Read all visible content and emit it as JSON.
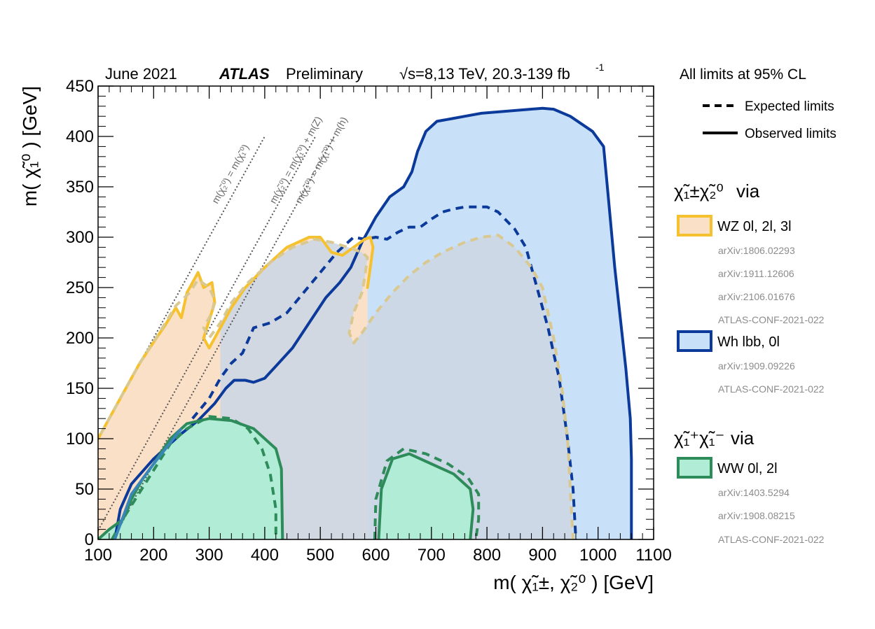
{
  "header": {
    "date": "June 2021",
    "experiment": "ATLAS",
    "status": "Preliminary",
    "sqrt_s_symbol": "√s",
    "energy_lumi": "=8,13 TeV, 20.3-139 fb",
    "lumi_exponent": "-1"
  },
  "legend": {
    "cl_note": "All limits at 95% CL",
    "expected_label": "Expected limits",
    "observed_label": "Observed limits",
    "groups": [
      {
        "process": "χ̃₁±χ̃₂⁰",
        "via": "via",
        "entries": [
          {
            "id": "wz",
            "label": "WZ  0l, 2l, 3l",
            "refs": [
              "arXiv:1806.02293",
              "arXiv:1911.12606",
              "arXiv:2106.01676",
              "ATLAS-CONF-2021-022"
            ]
          },
          {
            "id": "wh",
            "label": "Wh  lbb, 0l",
            "refs": [
              "arXiv:1909.09226",
              "ATLAS-CONF-2021-022"
            ]
          }
        ]
      },
      {
        "process": "χ̃₁⁺χ̃₁⁻",
        "via": "via",
        "entries": [
          {
            "id": "ww",
            "label": "WW  0l, 2l",
            "refs": [
              "arXiv:1403.5294",
              "arXiv:1908.08215",
              "ATLAS-CONF-2021-022"
            ]
          }
        ]
      }
    ]
  },
  "diagonals": [
    {
      "label": "m(χ̃₂⁰) = m(χ̃₁⁰)",
      "offset": 0
    },
    {
      "label": "m(χ̃₂⁰) = m(χ̃₁⁰) + m(Z)",
      "offset": 91.2
    },
    {
      "label": "m(χ̃₂⁰) = m(χ̃₁⁰) + m(h)",
      "offset": 125
    }
  ],
  "chart_data": {
    "type": "area",
    "title": "",
    "xlabel": "m( χ̃₁±, χ̃₂⁰ ) [GeV]",
    "ylabel": "m( χ̃₁⁰ ) [GeV]",
    "xlim": [
      100,
      1100
    ],
    "ylim": [
      0,
      450
    ],
    "x_ticks": [
      100,
      200,
      300,
      400,
      500,
      600,
      700,
      800,
      900,
      1000,
      1100
    ],
    "y_ticks": [
      0,
      50,
      100,
      150,
      200,
      250,
      300,
      350,
      400,
      450
    ],
    "colors": {
      "wz_fill": "#fbe0c8",
      "wz_line": "#f5c12e",
      "wz_exp": "#d9c890",
      "wh_fill": "#c8e1f8",
      "wh_line": "#0b3a9a",
      "ww_fill": "#b0ecd6",
      "ww_line": "#2e8b5a",
      "overlap_fill": "#cdd7e3",
      "diag": "#555555",
      "wh_lowline": "#3a86b8"
    },
    "series": [
      {
        "name": "Wh lbb, 0l (observed)",
        "kind": "observed",
        "key": "wh",
        "points": [
          [
            130,
            0
          ],
          [
            140,
            30
          ],
          [
            160,
            55
          ],
          [
            200,
            80
          ],
          [
            250,
            105
          ],
          [
            280,
            118
          ],
          [
            310,
            135
          ],
          [
            330,
            150
          ],
          [
            345,
            158
          ],
          [
            365,
            158
          ],
          [
            380,
            156
          ],
          [
            400,
            160
          ],
          [
            420,
            172
          ],
          [
            450,
            190
          ],
          [
            480,
            215
          ],
          [
            510,
            240
          ],
          [
            535,
            255
          ],
          [
            555,
            270
          ],
          [
            575,
            295
          ],
          [
            600,
            320
          ],
          [
            625,
            340
          ],
          [
            650,
            350
          ],
          [
            665,
            365
          ],
          [
            675,
            385
          ],
          [
            690,
            405
          ],
          [
            710,
            415
          ],
          [
            740,
            418
          ],
          [
            760,
            420
          ],
          [
            790,
            423
          ],
          [
            900,
            428
          ],
          [
            920,
            427
          ],
          [
            950,
            420
          ],
          [
            990,
            405
          ],
          [
            1010,
            390
          ],
          [
            1020,
            330
          ],
          [
            1030,
            270
          ],
          [
            1040,
            220
          ],
          [
            1050,
            170
          ],
          [
            1058,
            120
          ],
          [
            1060,
            80
          ],
          [
            1060,
            0
          ]
        ]
      },
      {
        "name": "Wh lbb, 0l (expected)",
        "kind": "expected",
        "key": "wh",
        "points": [
          [
            270,
            120
          ],
          [
            300,
            140
          ],
          [
            320,
            160
          ],
          [
            340,
            175
          ],
          [
            360,
            185
          ],
          [
            380,
            210
          ],
          [
            410,
            215
          ],
          [
            440,
            225
          ],
          [
            470,
            245
          ],
          [
            500,
            265
          ],
          [
            530,
            285
          ],
          [
            560,
            300
          ],
          [
            580,
            298
          ],
          [
            600,
            300
          ],
          [
            620,
            298
          ],
          [
            640,
            305
          ],
          [
            660,
            310
          ],
          [
            680,
            310
          ],
          [
            700,
            318
          ],
          [
            720,
            325
          ],
          [
            740,
            328
          ],
          [
            760,
            330
          ],
          [
            800,
            330
          ],
          [
            820,
            325
          ],
          [
            850,
            308
          ],
          [
            870,
            290
          ],
          [
            890,
            250
          ],
          [
            910,
            210
          ],
          [
            930,
            160
          ],
          [
            945,
            100
          ],
          [
            955,
            50
          ],
          [
            960,
            0
          ]
        ]
      },
      {
        "name": "WZ 0l, 2l, 3l (observed)",
        "kind": "observed",
        "key": "wz",
        "points": [
          [
            100,
            100
          ],
          [
            140,
            140
          ],
          [
            175,
            175
          ],
          [
            205,
            200
          ],
          [
            220,
            212
          ],
          [
            240,
            230
          ],
          [
            250,
            220
          ],
          [
            260,
            245
          ],
          [
            280,
            265
          ],
          [
            290,
            250
          ],
          [
            305,
            255
          ],
          [
            310,
            235
          ],
          [
            290,
            200
          ],
          [
            300,
            190
          ],
          [
            320,
            210
          ],
          [
            340,
            230
          ],
          [
            365,
            250
          ],
          [
            400,
            270
          ],
          [
            440,
            290
          ],
          [
            480,
            300
          ],
          [
            500,
            300
          ],
          [
            520,
            285
          ],
          [
            540,
            282
          ],
          [
            560,
            290
          ],
          [
            580,
            298
          ],
          [
            590,
            300
          ],
          [
            595,
            290
          ],
          [
            590,
            270
          ],
          [
            585,
            250
          ]
        ]
      },
      {
        "name": "WZ 0l, 2l, 3l (expected)",
        "kind": "expected",
        "key": "wz",
        "points": [
          [
            105,
            105
          ],
          [
            140,
            140
          ],
          [
            175,
            175
          ],
          [
            210,
            205
          ],
          [
            240,
            232
          ],
          [
            265,
            245
          ],
          [
            280,
            258
          ],
          [
            300,
            250
          ],
          [
            310,
            238
          ],
          [
            305,
            225
          ],
          [
            290,
            210
          ],
          [
            300,
            200
          ],
          [
            320,
            215
          ],
          [
            340,
            235
          ],
          [
            370,
            255
          ],
          [
            410,
            275
          ],
          [
            450,
            290
          ],
          [
            490,
            298
          ],
          [
            520,
            295
          ],
          [
            550,
            290
          ],
          [
            575,
            285
          ],
          [
            585,
            280
          ],
          [
            580,
            260
          ],
          [
            575,
            245
          ],
          [
            560,
            225
          ],
          [
            552,
            205
          ],
          [
            560,
            195
          ],
          [
            575,
            205
          ],
          [
            600,
            225
          ],
          [
            630,
            245
          ],
          [
            660,
            262
          ],
          [
            690,
            275
          ],
          [
            720,
            285
          ],
          [
            760,
            295
          ],
          [
            790,
            300
          ],
          [
            820,
            302
          ],
          [
            850,
            290
          ],
          [
            880,
            270
          ],
          [
            900,
            250
          ],
          [
            920,
            200
          ],
          [
            935,
            150
          ],
          [
            945,
            100
          ],
          [
            950,
            50
          ],
          [
            955,
            0
          ]
        ]
      },
      {
        "name": "WW 0l, 2l (observed)",
        "kind": "observed",
        "key": "ww",
        "points": [
          [
            100,
            0
          ],
          [
            120,
            10
          ],
          [
            145,
            20
          ],
          [
            160,
            40
          ],
          [
            180,
            60
          ],
          [
            200,
            75
          ],
          [
            230,
            100
          ],
          [
            260,
            115
          ],
          [
            300,
            120
          ],
          [
            340,
            118
          ],
          [
            380,
            110
          ],
          [
            420,
            90
          ],
          [
            430,
            70
          ],
          [
            432,
            0
          ]
        ]
      },
      {
        "name": "WW 0l, 2l (expected)",
        "kind": "expected",
        "key": "ww",
        "points": [
          [
            125,
            0
          ],
          [
            150,
            25
          ],
          [
            190,
            60
          ],
          [
            230,
            95
          ],
          [
            260,
            110
          ],
          [
            300,
            122
          ],
          [
            340,
            120
          ],
          [
            370,
            110
          ],
          [
            395,
            90
          ],
          [
            410,
            65
          ],
          [
            420,
            30
          ],
          [
            420,
            0
          ]
        ]
      },
      {
        "name": "WW 0l, 2l (observed, island)",
        "kind": "observed",
        "key": "ww",
        "points": [
          [
            605,
            0
          ],
          [
            610,
            50
          ],
          [
            630,
            80
          ],
          [
            660,
            85
          ],
          [
            700,
            75
          ],
          [
            740,
            65
          ],
          [
            770,
            50
          ],
          [
            775,
            30
          ],
          [
            770,
            0
          ]
        ]
      },
      {
        "name": "WW 0l, 2l (expected, island)",
        "kind": "expected",
        "key": "ww",
        "points": [
          [
            598,
            0
          ],
          [
            600,
            40
          ],
          [
            620,
            78
          ],
          [
            650,
            90
          ],
          [
            690,
            85
          ],
          [
            730,
            75
          ],
          [
            765,
            62
          ],
          [
            785,
            45
          ],
          [
            785,
            20
          ],
          [
            780,
            0
          ]
        ]
      }
    ]
  }
}
